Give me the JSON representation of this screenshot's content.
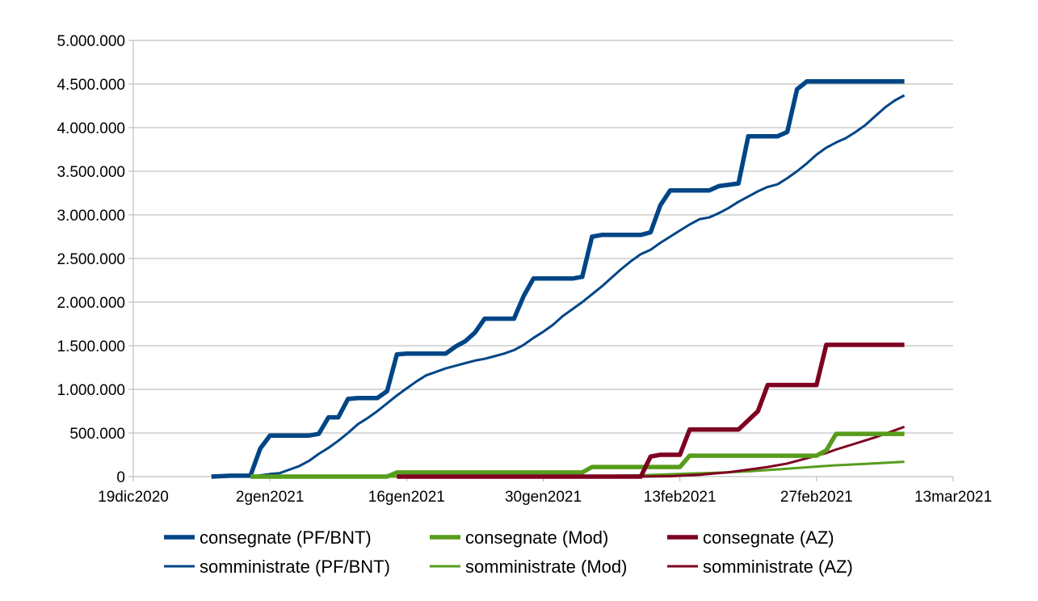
{
  "chart_data": {
    "type": "line",
    "title": "",
    "xlabel": "",
    "ylabel": "",
    "x_type": "date",
    "xlim": [
      "2020-12-19",
      "2021-03-13"
    ],
    "ylim": [
      0,
      5000000
    ],
    "x_ticks": [
      "2020-12-19",
      "2021-01-02",
      "2021-01-16",
      "2021-01-30",
      "2021-02-13",
      "2021-02-27",
      "2021-03-13"
    ],
    "x_tick_labels": [
      "19dic2020",
      "2gen2021",
      "16gen2021",
      "30gen2021",
      "13feb2021",
      "27feb2021",
      "13mar2021"
    ],
    "y_ticks": [
      0,
      500000,
      1000000,
      1500000,
      2000000,
      2500000,
      3000000,
      3500000,
      4000000,
      4500000,
      5000000
    ],
    "y_tick_labels": [
      "0",
      "500.000",
      "1.000.000",
      "1.500.000",
      "2.000.000",
      "2.500.000",
      "3.000.000",
      "3.500.000",
      "4.000.000",
      "4.500.000",
      "5.000.000"
    ],
    "grid": "horizontal",
    "legend_position": "bottom",
    "series": [
      {
        "name": "consegnate (PF/BNT)",
        "color": "#004586",
        "style": "thick",
        "points": [
          [
            "2020-12-27",
            0
          ],
          [
            "2020-12-29",
            10000
          ],
          [
            "2020-12-31",
            10000
          ],
          [
            "2021-01-01",
            320000
          ],
          [
            "2021-01-02",
            470000
          ],
          [
            "2021-01-06",
            470000
          ],
          [
            "2021-01-07",
            490000
          ],
          [
            "2021-01-08",
            680000
          ],
          [
            "2021-01-09",
            680000
          ],
          [
            "2021-01-10",
            890000
          ],
          [
            "2021-01-11",
            900000
          ],
          [
            "2021-01-13",
            900000
          ],
          [
            "2021-01-14",
            980000
          ],
          [
            "2021-01-15",
            1400000
          ],
          [
            "2021-01-16",
            1410000
          ],
          [
            "2021-01-20",
            1410000
          ],
          [
            "2021-01-21",
            1490000
          ],
          [
            "2021-01-22",
            1550000
          ],
          [
            "2021-01-23",
            1650000
          ],
          [
            "2021-01-24",
            1810000
          ],
          [
            "2021-01-27",
            1810000
          ],
          [
            "2021-01-28",
            2070000
          ],
          [
            "2021-01-29",
            2270000
          ],
          [
            "2021-02-02",
            2270000
          ],
          [
            "2021-02-03",
            2290000
          ],
          [
            "2021-02-04",
            2750000
          ],
          [
            "2021-02-05",
            2770000
          ],
          [
            "2021-02-09",
            2770000
          ],
          [
            "2021-02-10",
            2800000
          ],
          [
            "2021-02-11",
            3110000
          ],
          [
            "2021-02-12",
            3280000
          ],
          [
            "2021-02-16",
            3280000
          ],
          [
            "2021-02-17",
            3330000
          ],
          [
            "2021-02-19",
            3360000
          ],
          [
            "2021-02-20",
            3900000
          ],
          [
            "2021-02-23",
            3900000
          ],
          [
            "2021-02-24",
            3950000
          ],
          [
            "2021-02-25",
            4440000
          ],
          [
            "2021-02-26",
            4530000
          ],
          [
            "2021-03-08",
            4530000
          ]
        ]
      },
      {
        "name": "somministrate (PF/BNT)",
        "color": "#004586",
        "style": "thin",
        "points": [
          [
            "2020-12-31",
            0
          ],
          [
            "2021-01-02",
            30000
          ],
          [
            "2021-01-03",
            40000
          ],
          [
            "2021-01-04",
            80000
          ],
          [
            "2021-01-05",
            120000
          ],
          [
            "2021-01-06",
            180000
          ],
          [
            "2021-01-07",
            260000
          ],
          [
            "2021-01-08",
            330000
          ],
          [
            "2021-01-09",
            410000
          ],
          [
            "2021-01-10",
            500000
          ],
          [
            "2021-01-11",
            600000
          ],
          [
            "2021-01-12",
            670000
          ],
          [
            "2021-01-13",
            750000
          ],
          [
            "2021-01-14",
            840000
          ],
          [
            "2021-01-15",
            930000
          ],
          [
            "2021-01-16",
            1010000
          ],
          [
            "2021-01-17",
            1090000
          ],
          [
            "2021-01-18",
            1160000
          ],
          [
            "2021-01-19",
            1200000
          ],
          [
            "2021-01-20",
            1240000
          ],
          [
            "2021-01-21",
            1270000
          ],
          [
            "2021-01-22",
            1300000
          ],
          [
            "2021-01-23",
            1330000
          ],
          [
            "2021-01-24",
            1350000
          ],
          [
            "2021-01-25",
            1380000
          ],
          [
            "2021-01-26",
            1410000
          ],
          [
            "2021-01-27",
            1450000
          ],
          [
            "2021-01-28",
            1510000
          ],
          [
            "2021-01-29",
            1590000
          ],
          [
            "2021-01-30",
            1660000
          ],
          [
            "2021-01-31",
            1740000
          ],
          [
            "2021-02-01",
            1840000
          ],
          [
            "2021-02-02",
            1920000
          ],
          [
            "2021-02-03",
            2000000
          ],
          [
            "2021-02-04",
            2090000
          ],
          [
            "2021-02-05",
            2180000
          ],
          [
            "2021-02-06",
            2280000
          ],
          [
            "2021-02-07",
            2380000
          ],
          [
            "2021-02-08",
            2470000
          ],
          [
            "2021-02-09",
            2550000
          ],
          [
            "2021-02-10",
            2600000
          ],
          [
            "2021-02-11",
            2680000
          ],
          [
            "2021-02-12",
            2750000
          ],
          [
            "2021-02-13",
            2820000
          ],
          [
            "2021-02-14",
            2890000
          ],
          [
            "2021-02-15",
            2950000
          ],
          [
            "2021-02-16",
            2970000
          ],
          [
            "2021-02-17",
            3020000
          ],
          [
            "2021-02-18",
            3080000
          ],
          [
            "2021-02-19",
            3150000
          ],
          [
            "2021-02-20",
            3210000
          ],
          [
            "2021-02-21",
            3270000
          ],
          [
            "2021-02-22",
            3320000
          ],
          [
            "2021-02-23",
            3350000
          ],
          [
            "2021-02-24",
            3420000
          ],
          [
            "2021-02-25",
            3500000
          ],
          [
            "2021-02-26",
            3590000
          ],
          [
            "2021-02-27",
            3690000
          ],
          [
            "2021-02-28",
            3770000
          ],
          [
            "2021-03-01",
            3830000
          ],
          [
            "2021-03-02",
            3880000
          ],
          [
            "2021-03-03",
            3950000
          ],
          [
            "2021-03-04",
            4030000
          ],
          [
            "2021-03-05",
            4130000
          ],
          [
            "2021-03-06",
            4230000
          ],
          [
            "2021-03-07",
            4310000
          ],
          [
            "2021-03-08",
            4370000
          ]
        ]
      },
      {
        "name": "consegnate (Mod)",
        "color": "#579d1c",
        "style": "thick",
        "points": [
          [
            "2020-12-31",
            0
          ],
          [
            "2021-01-14",
            0
          ],
          [
            "2021-01-15",
            47000
          ],
          [
            "2021-02-03",
            47000
          ],
          [
            "2021-02-04",
            110000
          ],
          [
            "2021-02-12",
            110000
          ],
          [
            "2021-02-13",
            110000
          ],
          [
            "2021-02-14",
            240000
          ],
          [
            "2021-02-27",
            240000
          ],
          [
            "2021-02-28",
            300000
          ],
          [
            "2021-03-01",
            490000
          ],
          [
            "2021-03-08",
            490000
          ]
        ]
      },
      {
        "name": "somministrate (Mod)",
        "color": "#579d1c",
        "style": "thin",
        "points": [
          [
            "2021-01-14",
            0
          ],
          [
            "2021-01-20",
            0
          ],
          [
            "2021-01-27",
            0
          ],
          [
            "2021-02-03",
            4000
          ],
          [
            "2021-02-09",
            15000
          ],
          [
            "2021-02-14",
            35000
          ],
          [
            "2021-02-17",
            45000
          ],
          [
            "2021-02-20",
            60000
          ],
          [
            "2021-02-24",
            90000
          ],
          [
            "2021-02-27",
            115000
          ],
          [
            "2021-03-01",
            130000
          ],
          [
            "2021-03-04",
            145000
          ],
          [
            "2021-03-08",
            170000
          ]
        ]
      },
      {
        "name": "consegnate (AZ)",
        "color": "#7e0021",
        "style": "thick",
        "points": [
          [
            "2021-01-15",
            0
          ],
          [
            "2021-02-09",
            0
          ],
          [
            "2021-02-10",
            230000
          ],
          [
            "2021-02-11",
            250000
          ],
          [
            "2021-02-13",
            250000
          ],
          [
            "2021-02-14",
            540000
          ],
          [
            "2021-02-19",
            540000
          ],
          [
            "2021-02-21",
            750000
          ],
          [
            "2021-02-22",
            1050000
          ],
          [
            "2021-02-27",
            1050000
          ],
          [
            "2021-02-28",
            1510000
          ],
          [
            "2021-03-08",
            1510000
          ]
        ]
      },
      {
        "name": "somministrate (AZ)",
        "color": "#7e0021",
        "style": "thin",
        "points": [
          [
            "2021-02-09",
            0
          ],
          [
            "2021-02-12",
            5000
          ],
          [
            "2021-02-15",
            20000
          ],
          [
            "2021-02-18",
            50000
          ],
          [
            "2021-02-20",
            80000
          ],
          [
            "2021-02-22",
            110000
          ],
          [
            "2021-02-24",
            150000
          ],
          [
            "2021-02-26",
            210000
          ],
          [
            "2021-02-28",
            270000
          ],
          [
            "2021-03-01",
            310000
          ],
          [
            "2021-03-03",
            380000
          ],
          [
            "2021-03-05",
            450000
          ],
          [
            "2021-03-07",
            530000
          ],
          [
            "2021-03-08",
            570000
          ]
        ]
      }
    ],
    "legend_order": [
      0,
      2,
      4,
      1,
      3,
      5
    ]
  }
}
